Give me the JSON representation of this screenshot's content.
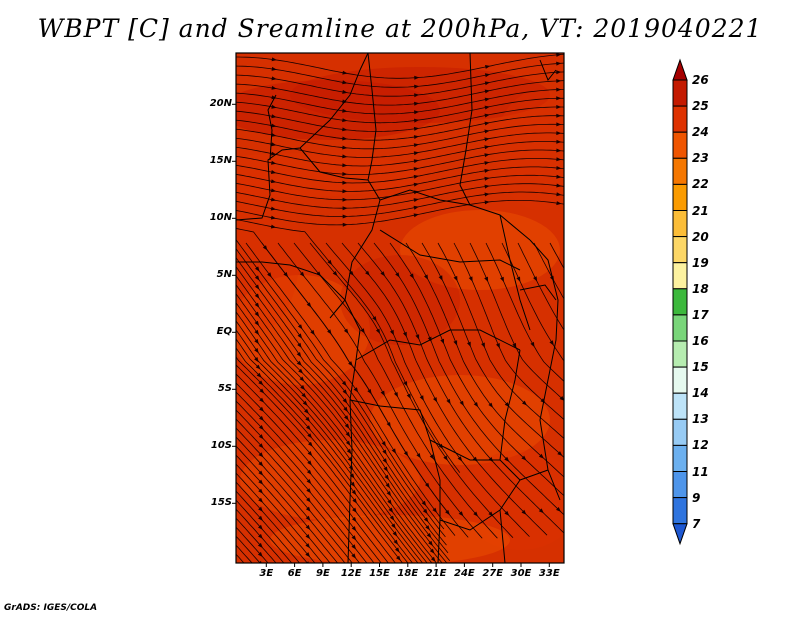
{
  "figure": {
    "title": "WBPT [C] and Sreamline at 200hPa, VT: 2019040221",
    "footer": "GrADS: IGES/COLA"
  },
  "map": {
    "lat_ticks": [
      "20N",
      "15N",
      "10N",
      "5N",
      "EQ",
      "5S",
      "10S",
      "15S"
    ],
    "lon_ticks": [
      "3E",
      "6E",
      "9E",
      "12E",
      "15E",
      "18E",
      "21E",
      "24E",
      "27E",
      "30E",
      "33E"
    ],
    "field": "WBPT",
    "field_range_shown": [
      23,
      26
    ],
    "streamline_level": "200hPa"
  },
  "colorbar": {
    "levels": [
      "26",
      "25",
      "24",
      "23",
      "22",
      "21",
      "20",
      "19",
      "18",
      "17",
      "16",
      "15",
      "14",
      "13",
      "12",
      "11",
      "9",
      "7"
    ],
    "colors": [
      "#a50000",
      "#c41a00",
      "#de3200",
      "#ef5500",
      "#f57700",
      "#fa9b00",
      "#fbbd38",
      "#fdd766",
      "#fdf2a0",
      "#3cb83c",
      "#79d67a",
      "#b6ecb0",
      "#e6f9ef",
      "#bde3f8",
      "#97cbf4",
      "#6cb0ef",
      "#4e95ea",
      "#2f74de",
      "#1e58d2"
    ]
  }
}
